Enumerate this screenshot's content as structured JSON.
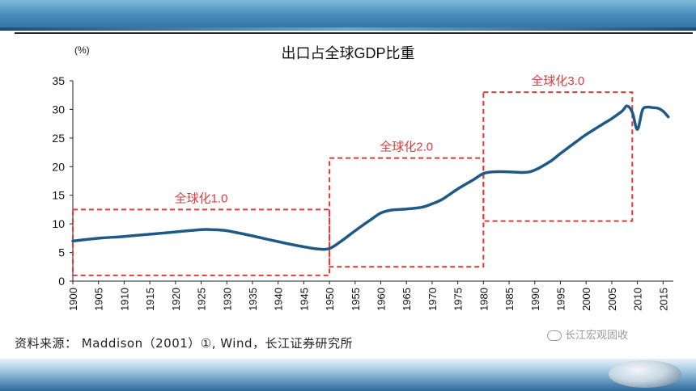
{
  "source_text": "资料来源： Maddison（2001）①, Wind，长江证券研究所",
  "watermark": "长江宏观固收",
  "chart_data": {
    "type": "line",
    "title": "出口占全球GDP比重",
    "ylabel": "(%)",
    "xlabel": "",
    "xlim": [
      1900,
      2017
    ],
    "ylim": [
      0,
      35
    ],
    "yticks": [
      0,
      5,
      10,
      15,
      20,
      25,
      30,
      35
    ],
    "xticks": [
      "1900",
      "1905",
      "1910",
      "1915",
      "1920",
      "1925",
      "1930",
      "1935",
      "1940",
      "1945",
      "1950",
      "1955",
      "1960",
      "1965",
      "1970",
      "1975",
      "1980",
      "1985",
      "1990",
      "1995",
      "2000",
      "2005",
      "2010",
      "2015"
    ],
    "grid": false,
    "legend": "none",
    "line_color": "#1d5a87",
    "box_color": "#e03a3a",
    "series": [
      {
        "x": [
          1900,
          1905,
          1910,
          1915,
          1920,
          1925,
          1927,
          1930,
          1935,
          1940,
          1945,
          1948,
          1950,
          1952,
          1955,
          1958,
          1960,
          1962,
          1965,
          1968,
          1970,
          1972,
          1975,
          1978,
          1980,
          1982,
          1985,
          1988,
          1990,
          1993,
          1995,
          1998,
          2000,
          2003,
          2005,
          2007,
          2008,
          2009,
          2010,
          2011,
          2012,
          2013,
          2014,
          2015,
          2016
        ],
        "values": [
          7.0,
          7.5,
          7.8,
          8.2,
          8.6,
          9.0,
          9.0,
          8.8,
          7.9,
          6.9,
          6.0,
          5.6,
          5.7,
          6.8,
          8.8,
          10.7,
          11.9,
          12.4,
          12.6,
          12.9,
          13.5,
          14.3,
          16.1,
          17.7,
          18.8,
          19.1,
          19.1,
          19.0,
          19.4,
          20.9,
          22.3,
          24.3,
          25.6,
          27.3,
          28.4,
          29.7,
          30.6,
          29.5,
          26.5,
          29.9,
          30.4,
          30.3,
          30.2,
          29.7,
          28.7
        ]
      }
    ],
    "annotations": [
      {
        "label": "全球化1.0",
        "x0": 1900,
        "x1": 1950,
        "y0": 1,
        "y1": 12.5
      },
      {
        "label": "全球化2.0",
        "x0": 1950,
        "x1": 1980,
        "y0": 2.5,
        "y1": 21.5
      },
      {
        "label": "全球化3.0",
        "x0": 1980,
        "x1": 2009,
        "y0": 10.5,
        "y1": 33
      }
    ]
  }
}
